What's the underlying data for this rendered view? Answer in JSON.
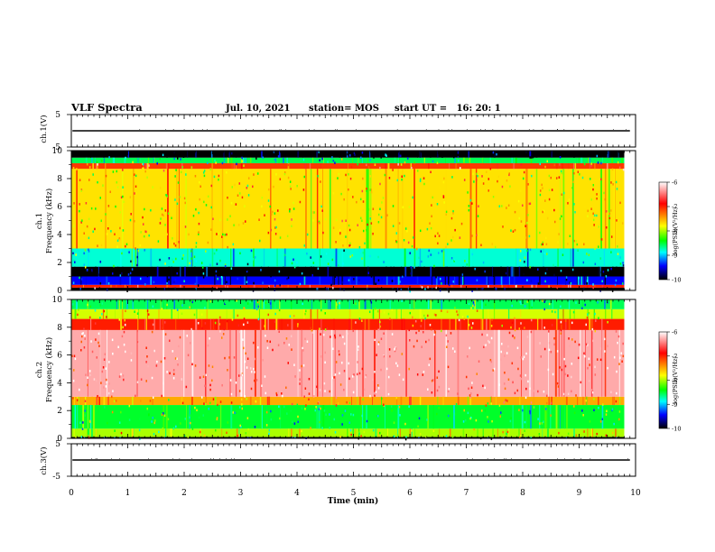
{
  "header": {
    "title": "VLF Spectra",
    "date": "Jul. 10, 2021",
    "station": "station= MOS",
    "start_ut": "start UT =   16: 20: 1"
  },
  "colorbar": {
    "label": "log(PSD)(V²/Hz)",
    "ticks": [
      "-6",
      "-7",
      "-8",
      "-9",
      "-10"
    ],
    "stops": [
      "#ffffff",
      "#ff0000",
      "#ffff00",
      "#00ff00",
      "#00ffff",
      "#0000ff",
      "#000000"
    ]
  },
  "chart_data": [
    {
      "name": "ch1-waveform",
      "type": "line",
      "ylabel": "ch.1(V)",
      "ylim": [
        -5,
        5
      ],
      "y_ticks": [
        "5",
        "-5"
      ],
      "x_range_min": [
        0,
        10
      ],
      "value_v": 0
    },
    {
      "name": "ch1-spectrogram",
      "type": "heatmap",
      "ylabel": "ch.1\nFrequency (kHz)",
      "ylim_khz": [
        0,
        10
      ],
      "y_ticks": [
        "10",
        "8",
        "6",
        "4",
        "2",
        "0"
      ],
      "x_range_min": [
        0,
        9.8
      ],
      "color_range_log_psd": [
        -10,
        -6
      ],
      "bands": [
        {
          "f_khz": [
            0.0,
            0.2
          ],
          "log_psd": -10
        },
        {
          "f_khz": [
            0.2,
            0.4
          ],
          "log_psd": -7
        },
        {
          "f_khz": [
            0.4,
            1.0
          ],
          "log_psd": -9.6
        },
        {
          "f_khz": [
            1.0,
            1.7
          ],
          "log_psd": -10
        },
        {
          "f_khz": [
            1.7,
            3.0
          ],
          "log_psd": -8.9
        },
        {
          "f_khz": [
            3.0,
            8.7
          ],
          "log_psd": -7.7
        },
        {
          "f_khz": [
            8.7,
            9.1
          ],
          "log_psd": -7.1
        },
        {
          "f_khz": [
            9.1,
            9.5
          ],
          "log_psd": -8.6
        },
        {
          "f_khz": [
            9.5,
            10.0
          ],
          "log_psd": -10
        }
      ]
    },
    {
      "name": "ch2-spectrogram",
      "type": "heatmap",
      "ylabel": "ch.2\nFrequency (kHz)",
      "ylim_khz": [
        0,
        10
      ],
      "y_ticks": [
        "10",
        "8",
        "6",
        "4",
        "2",
        "0"
      ],
      "x_range_min": [
        0,
        9.8
      ],
      "color_range_log_psd": [
        -10,
        -6
      ],
      "bands": [
        {
          "f_khz": [
            0.0,
            0.1
          ],
          "log_psd": -10
        },
        {
          "f_khz": [
            0.1,
            0.7
          ],
          "log_psd": -8.0
        },
        {
          "f_khz": [
            0.7,
            2.4
          ],
          "log_psd": -8.5
        },
        {
          "f_khz": [
            2.4,
            3.0
          ],
          "log_psd": -7.5
        },
        {
          "f_khz": [
            3.0,
            7.8
          ],
          "log_psd": -6.3
        },
        {
          "f_khz": [
            7.8,
            8.6
          ],
          "log_psd": -7.0
        },
        {
          "f_khz": [
            8.6,
            9.3
          ],
          "log_psd": -7.9
        },
        {
          "f_khz": [
            9.3,
            10.0
          ],
          "log_psd": -8.6
        }
      ]
    },
    {
      "name": "ch3-waveform",
      "type": "line",
      "ylabel": "ch.3(V)",
      "ylim": [
        -5,
        5
      ],
      "y_ticks": [
        "5",
        "-5"
      ],
      "x_range_min": [
        0,
        10
      ],
      "value_v": 0
    }
  ],
  "x_axis": {
    "label": "Time (min)",
    "ticks": [
      "0",
      "1",
      "2",
      "3",
      "4",
      "5",
      "6",
      "7",
      "8",
      "9",
      "10"
    ],
    "range": [
      0,
      10
    ]
  }
}
